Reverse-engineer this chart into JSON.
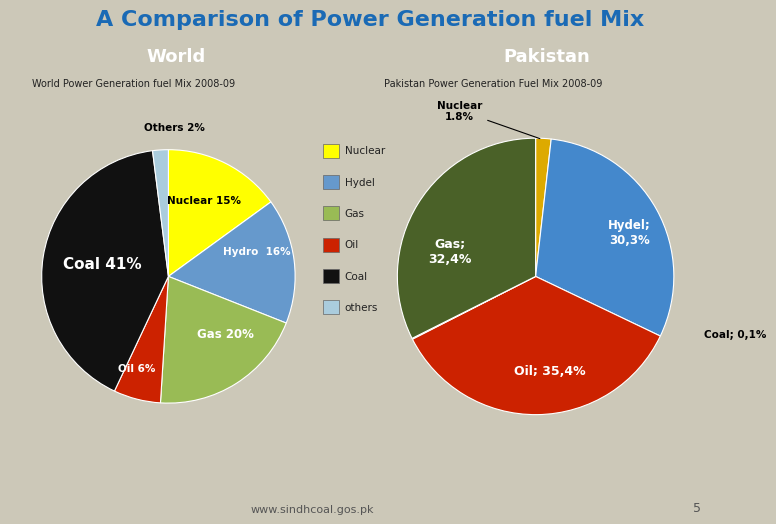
{
  "title": "A Comparison of Power Generation fuel Mix",
  "title_color": "#1a6ab5",
  "background_color": "#ccc8b8",
  "header_bg": "#000000",
  "header_text_color": "#ffffff",
  "world_header": "World",
  "pakistan_header": "Pakistan",
  "world_subtitle": "World Power Generation fuel Mix 2008-09",
  "pakistan_subtitle": "Pakistan Power Generation Fuel Mix 2008-09",
  "world_values": [
    15,
    16,
    20,
    6,
    41,
    2
  ],
  "world_colors": [
    "#ffff00",
    "#6699cc",
    "#99bb55",
    "#cc2200",
    "#111111",
    "#aaccdd"
  ],
  "pakistan_order_vals": [
    1.8,
    30.3,
    35.4,
    0.1,
    32.4
  ],
  "pakistan_order_colors": [
    "#ddaa00",
    "#4488cc",
    "#cc2200",
    "#111111",
    "#4a6128"
  ],
  "legend_labels": [
    "Nuclear",
    "Hydel",
    "Gas",
    "Oil",
    "Coal",
    "others"
  ],
  "legend_colors": [
    "#ffff00",
    "#6699cc",
    "#99bb55",
    "#cc2200",
    "#111111",
    "#aaccdd"
  ],
  "footer_text": "www.sindhcoal.gos.pk",
  "page_number": "5"
}
